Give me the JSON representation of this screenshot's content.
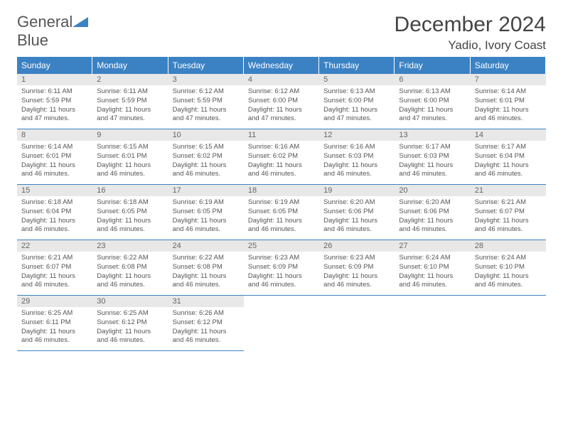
{
  "brand": {
    "word1": "General",
    "word2": "Blue"
  },
  "title": "December 2024",
  "location": "Yadio, Ivory Coast",
  "day_headers": [
    "Sunday",
    "Monday",
    "Tuesday",
    "Wednesday",
    "Thursday",
    "Friday",
    "Saturday"
  ],
  "colors": {
    "header_bg": "#3b82c4",
    "header_text": "#ffffff",
    "daynum_bg": "#e8e8e8",
    "cell_border": "#3b82c4",
    "body_text": "#555555",
    "title_text": "#444444"
  },
  "layout": {
    "columns": 7,
    "rows": 5,
    "first_weekday_index": 0
  },
  "typography": {
    "title_fontsize": 30,
    "location_fontsize": 17,
    "header_fontsize": 12,
    "cell_fontsize": 9.5
  },
  "days": [
    {
      "n": 1,
      "sunrise": "6:11 AM",
      "sunset": "5:59 PM",
      "daylight": "11 hours and 47 minutes."
    },
    {
      "n": 2,
      "sunrise": "6:11 AM",
      "sunset": "5:59 PM",
      "daylight": "11 hours and 47 minutes."
    },
    {
      "n": 3,
      "sunrise": "6:12 AM",
      "sunset": "5:59 PM",
      "daylight": "11 hours and 47 minutes."
    },
    {
      "n": 4,
      "sunrise": "6:12 AM",
      "sunset": "6:00 PM",
      "daylight": "11 hours and 47 minutes."
    },
    {
      "n": 5,
      "sunrise": "6:13 AM",
      "sunset": "6:00 PM",
      "daylight": "11 hours and 47 minutes."
    },
    {
      "n": 6,
      "sunrise": "6:13 AM",
      "sunset": "6:00 PM",
      "daylight": "11 hours and 47 minutes."
    },
    {
      "n": 7,
      "sunrise": "6:14 AM",
      "sunset": "6:01 PM",
      "daylight": "11 hours and 46 minutes."
    },
    {
      "n": 8,
      "sunrise": "6:14 AM",
      "sunset": "6:01 PM",
      "daylight": "11 hours and 46 minutes."
    },
    {
      "n": 9,
      "sunrise": "6:15 AM",
      "sunset": "6:01 PM",
      "daylight": "11 hours and 46 minutes."
    },
    {
      "n": 10,
      "sunrise": "6:15 AM",
      "sunset": "6:02 PM",
      "daylight": "11 hours and 46 minutes."
    },
    {
      "n": 11,
      "sunrise": "6:16 AM",
      "sunset": "6:02 PM",
      "daylight": "11 hours and 46 minutes."
    },
    {
      "n": 12,
      "sunrise": "6:16 AM",
      "sunset": "6:03 PM",
      "daylight": "11 hours and 46 minutes."
    },
    {
      "n": 13,
      "sunrise": "6:17 AM",
      "sunset": "6:03 PM",
      "daylight": "11 hours and 46 minutes."
    },
    {
      "n": 14,
      "sunrise": "6:17 AM",
      "sunset": "6:04 PM",
      "daylight": "11 hours and 46 minutes."
    },
    {
      "n": 15,
      "sunrise": "6:18 AM",
      "sunset": "6:04 PM",
      "daylight": "11 hours and 46 minutes."
    },
    {
      "n": 16,
      "sunrise": "6:18 AM",
      "sunset": "6:05 PM",
      "daylight": "11 hours and 46 minutes."
    },
    {
      "n": 17,
      "sunrise": "6:19 AM",
      "sunset": "6:05 PM",
      "daylight": "11 hours and 46 minutes."
    },
    {
      "n": 18,
      "sunrise": "6:19 AM",
      "sunset": "6:05 PM",
      "daylight": "11 hours and 46 minutes."
    },
    {
      "n": 19,
      "sunrise": "6:20 AM",
      "sunset": "6:06 PM",
      "daylight": "11 hours and 46 minutes."
    },
    {
      "n": 20,
      "sunrise": "6:20 AM",
      "sunset": "6:06 PM",
      "daylight": "11 hours and 46 minutes."
    },
    {
      "n": 21,
      "sunrise": "6:21 AM",
      "sunset": "6:07 PM",
      "daylight": "11 hours and 46 minutes."
    },
    {
      "n": 22,
      "sunrise": "6:21 AM",
      "sunset": "6:07 PM",
      "daylight": "11 hours and 46 minutes."
    },
    {
      "n": 23,
      "sunrise": "6:22 AM",
      "sunset": "6:08 PM",
      "daylight": "11 hours and 46 minutes."
    },
    {
      "n": 24,
      "sunrise": "6:22 AM",
      "sunset": "6:08 PM",
      "daylight": "11 hours and 46 minutes."
    },
    {
      "n": 25,
      "sunrise": "6:23 AM",
      "sunset": "6:09 PM",
      "daylight": "11 hours and 46 minutes."
    },
    {
      "n": 26,
      "sunrise": "6:23 AM",
      "sunset": "6:09 PM",
      "daylight": "11 hours and 46 minutes."
    },
    {
      "n": 27,
      "sunrise": "6:24 AM",
      "sunset": "6:10 PM",
      "daylight": "11 hours and 46 minutes."
    },
    {
      "n": 28,
      "sunrise": "6:24 AM",
      "sunset": "6:10 PM",
      "daylight": "11 hours and 46 minutes."
    },
    {
      "n": 29,
      "sunrise": "6:25 AM",
      "sunset": "6:11 PM",
      "daylight": "11 hours and 46 minutes."
    },
    {
      "n": 30,
      "sunrise": "6:25 AM",
      "sunset": "6:12 PM",
      "daylight": "11 hours and 46 minutes."
    },
    {
      "n": 31,
      "sunrise": "6:26 AM",
      "sunset": "6:12 PM",
      "daylight": "11 hours and 46 minutes."
    }
  ],
  "labels": {
    "sunrise": "Sunrise:",
    "sunset": "Sunset:",
    "daylight": "Daylight:"
  }
}
